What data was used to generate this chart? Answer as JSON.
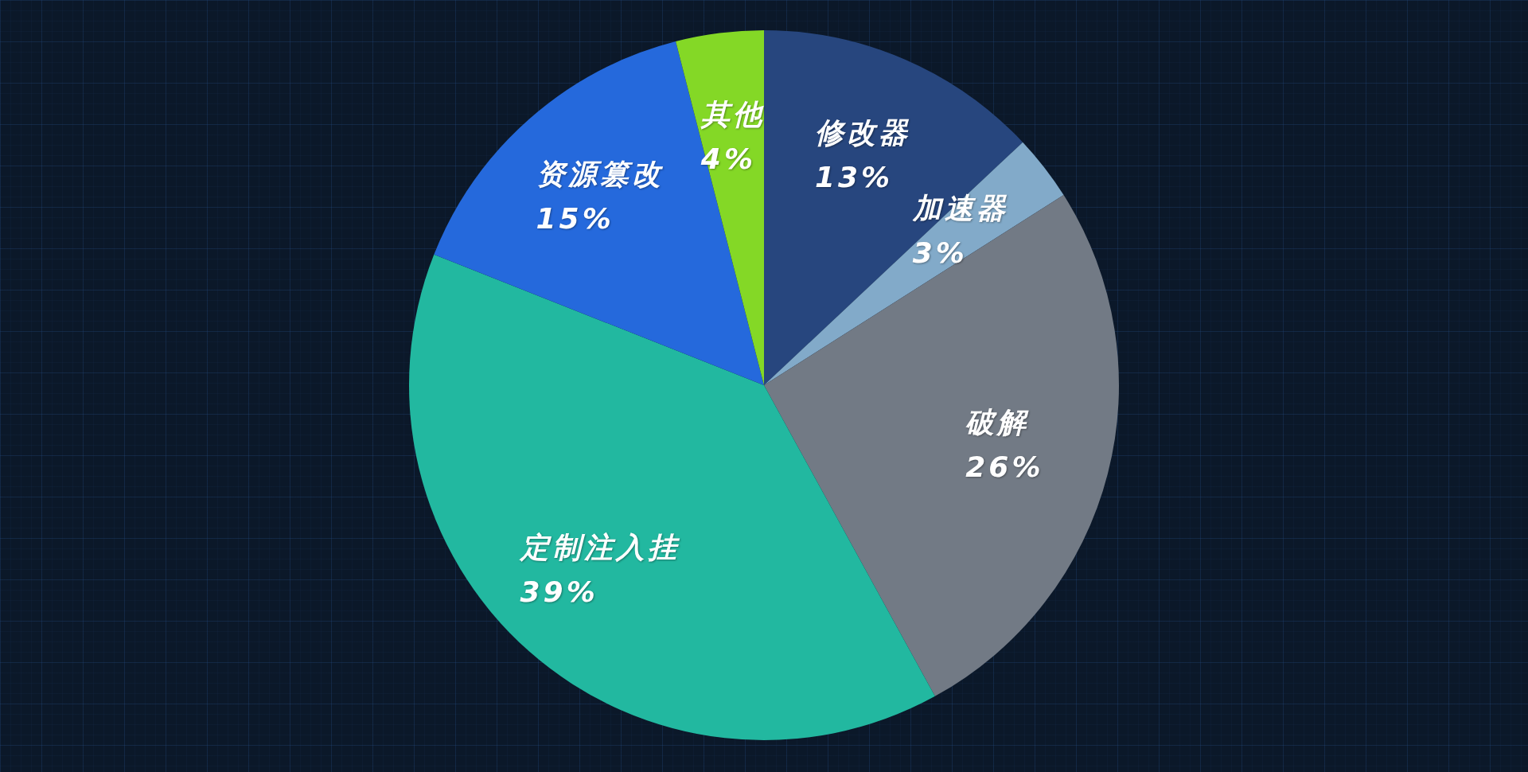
{
  "chart_data": {
    "type": "pie",
    "categories": [
      "修改器",
      "加速器",
      "破解",
      "定制注入挂",
      "资源篡改",
      "其他"
    ],
    "values": [
      13,
      3,
      26,
      39,
      15,
      4
    ],
    "colors": [
      "#27467e",
      "#82aac9",
      "#727a85",
      "#22b8a0",
      "#2569dc",
      "#84d826"
    ],
    "value_labels": [
      "13%",
      "3%",
      "26%",
      "39%",
      "15%",
      "4%"
    ]
  }
}
